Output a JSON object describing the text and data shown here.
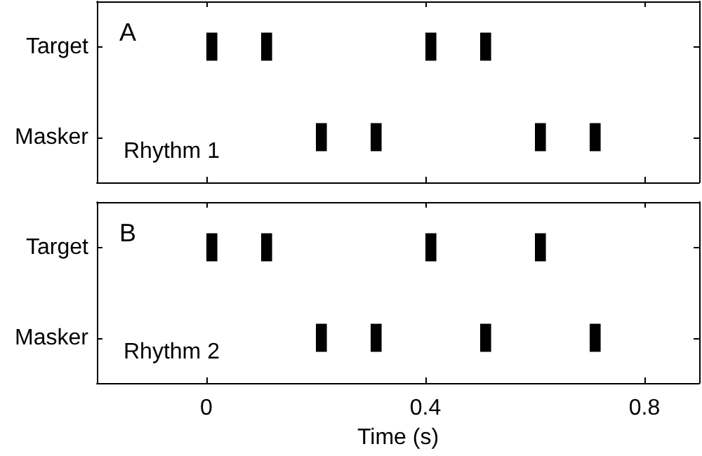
{
  "chart_data": [
    {
      "type": "bar",
      "orientation": "horizontal",
      "title": "A",
      "annotations": [
        "Rhythm 1"
      ],
      "categories": [
        "Target",
        "Masker"
      ],
      "xlim": [
        -0.2,
        0.9
      ],
      "xticks": [
        0,
        0.4,
        0.8
      ],
      "tick_labels": "y",
      "series": [
        {
          "color": "#000000",
          "base": [
            0,
            0.2
          ],
          "values": [
            0.02,
            0.02
          ]
        },
        {
          "color": "#000000",
          "base": [
            0.1,
            0.3
          ],
          "values": [
            0.02,
            0.02
          ]
        },
        {
          "color": "#000000",
          "base": [
            0.4,
            0.6
          ],
          "values": [
            0.02,
            0.02
          ]
        },
        {
          "color": "#000000",
          "base": [
            0.5,
            0.7
          ],
          "values": [
            0.02,
            0.02
          ]
        }
      ]
    },
    {
      "type": "bar",
      "orientation": "horizontal",
      "title": "B",
      "annotations": [
        "Rhythm 2"
      ],
      "xlabel": "Time (s)",
      "categories": [
        "Target",
        "Masker"
      ],
      "xlim": [
        -0.2,
        0.9
      ],
      "xticks": [
        0,
        0.4,
        0.8
      ],
      "series": [
        {
          "color": "#000000",
          "base": [
            0,
            0.2
          ],
          "values": [
            0.02,
            0.02
          ]
        },
        {
          "color": "#000000",
          "base": [
            0.1,
            0.3
          ],
          "values": [
            0.02,
            0.02
          ]
        },
        {
          "color": "#000000",
          "base": [
            0.4,
            0.5
          ],
          "values": [
            0.02,
            0.02
          ]
        },
        {
          "color": "#000000",
          "base": [
            0.6,
            0.7
          ],
          "values": [
            0.02,
            0.02
          ]
        }
      ]
    }
  ]
}
